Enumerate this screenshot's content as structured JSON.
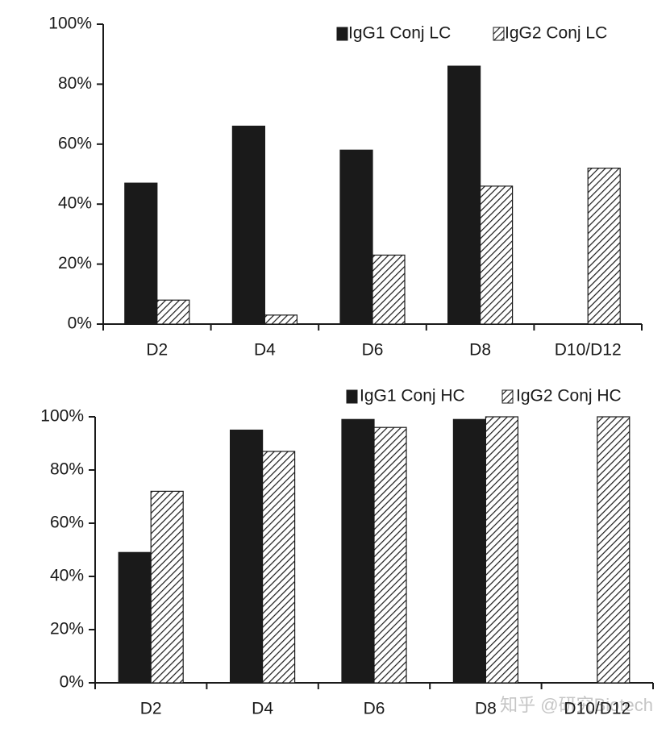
{
  "chart_data": [
    {
      "type": "bar",
      "categories": [
        "D2",
        "D4",
        "D6",
        "D8",
        "D10/D12"
      ],
      "series": [
        {
          "name": "IgG1 Conj LC",
          "color": "#1a1a1a",
          "pattern": "solid",
          "values": [
            47,
            66,
            58,
            86,
            null
          ]
        },
        {
          "name": "IgG2 Conj LC",
          "color": "#1a1a1a",
          "pattern": "hatch",
          "values": [
            8,
            3,
            23,
            46,
            52
          ]
        }
      ],
      "ylim": [
        0,
        100
      ],
      "yticks": [
        {
          "value": 0,
          "label": "0%"
        },
        {
          "value": 20,
          "label": "20%"
        },
        {
          "value": 40,
          "label": "40%"
        },
        {
          "value": 60,
          "label": "60%"
        },
        {
          "value": 80,
          "label": "80%"
        },
        {
          "value": 100,
          "label": "100%"
        }
      ],
      "grid": false,
      "legend": "upper right"
    },
    {
      "type": "bar",
      "categories": [
        "D2",
        "D4",
        "D6",
        "D8",
        "D10/D12"
      ],
      "series": [
        {
          "name": "IgG1 Conj HC",
          "color": "#1a1a1a",
          "pattern": "solid",
          "values": [
            49,
            95,
            99,
            99,
            null
          ]
        },
        {
          "name": "IgG2 Conj HC",
          "color": "#1a1a1a",
          "pattern": "hatch",
          "values": [
            72,
            87,
            96,
            100,
            100
          ]
        }
      ],
      "ylim": [
        0,
        100
      ],
      "yticks": [
        {
          "value": 0,
          "label": "0%"
        },
        {
          "value": 20,
          "label": "20%"
        },
        {
          "value": 40,
          "label": "40%"
        },
        {
          "value": 60,
          "label": "60%"
        },
        {
          "value": 80,
          "label": "80%"
        },
        {
          "value": 100,
          "label": "100%"
        }
      ],
      "grid": false,
      "legend": "top right"
    }
  ],
  "watermark": "知乎 @研究Biotech"
}
